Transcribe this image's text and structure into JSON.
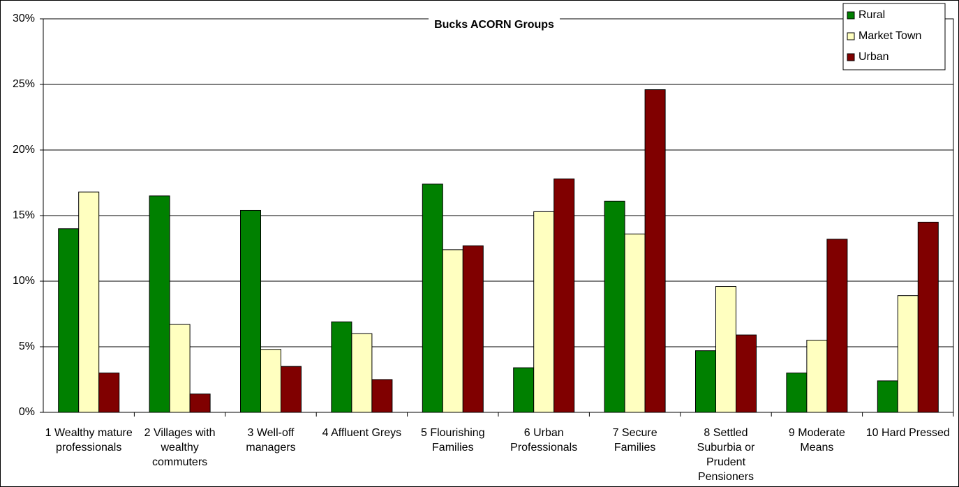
{
  "chart_data": {
    "type": "bar",
    "title": "Bucks ACORN Groups",
    "categories": [
      "1 Wealthy mature professionals",
      "2 Villages with wealthy commuters",
      "3 Well-off managers",
      "4 Affluent Greys",
      "5 Flourishing Families",
      "6 Urban Professionals",
      "7 Secure Families",
      "8 Settled Suburbia or Prudent Pensioners",
      "9 Moderate Means",
      "10 Hard Pressed"
    ],
    "series": [
      {
        "name": "Rural",
        "color": "#008000",
        "values": [
          14.0,
          16.5,
          15.4,
          6.9,
          17.4,
          3.4,
          16.1,
          4.7,
          3.0,
          2.4
        ]
      },
      {
        "name": "Market Town",
        "color": "#ffffc0",
        "values": [
          16.8,
          6.7,
          4.8,
          6.0,
          12.4,
          15.3,
          13.6,
          9.6,
          5.5,
          8.9
        ]
      },
      {
        "name": "Urban",
        "color": "#800000",
        "values": [
          3.0,
          1.4,
          3.5,
          2.5,
          12.7,
          17.8,
          24.6,
          5.9,
          13.2,
          14.5
        ]
      }
    ],
    "ylim": [
      0,
      30
    ],
    "yticks": [
      {
        "value": 0,
        "label": "0%"
      },
      {
        "value": 5,
        "label": "5%"
      },
      {
        "value": 10,
        "label": "10%"
      },
      {
        "value": 15,
        "label": "15%"
      },
      {
        "value": 20,
        "label": "20%"
      },
      {
        "value": 25,
        "label": "25%"
      },
      {
        "value": 30,
        "label": "30%"
      }
    ],
    "grid": true,
    "legend": "top-right"
  }
}
